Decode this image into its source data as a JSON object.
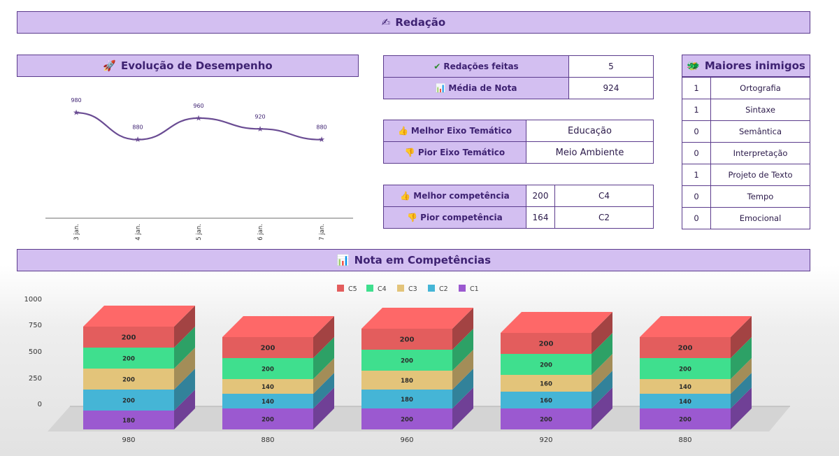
{
  "header": {
    "title": "Redação",
    "icon": "✍"
  },
  "evolucao": {
    "title": "Evolução de Desempenho",
    "icon": "🚀"
  },
  "stats1": {
    "rows": [
      {
        "icon": "✔",
        "label": "Redações feitas",
        "value": "5"
      },
      {
        "icon": "📊",
        "label": "Média de Nota",
        "value": "924"
      }
    ]
  },
  "stats2": {
    "rows": [
      {
        "icon": "👍",
        "label": "Melhor Eixo Temático",
        "value": "Educação"
      },
      {
        "icon": "👎",
        "label": "Pior Eixo Temático",
        "value": "Meio Ambiente"
      }
    ]
  },
  "stats3": {
    "rows": [
      {
        "icon": "👍",
        "label": "Melhor competência",
        "score": "200",
        "value": "C4"
      },
      {
        "icon": "👎",
        "label": "Pior competência",
        "score": "164",
        "value": "C2"
      }
    ]
  },
  "inimigos": {
    "title": "Maiores inimigos",
    "icon": "🐲",
    "rows": [
      {
        "count": "1",
        "name": "Ortografia"
      },
      {
        "count": "1",
        "name": "Sintaxe"
      },
      {
        "count": "0",
        "name": "Semântica"
      },
      {
        "count": "0",
        "name": "Interpretação"
      },
      {
        "count": "1",
        "name": "Projeto de Texto"
      },
      {
        "count": "0",
        "name": "Tempo"
      },
      {
        "count": "0",
        "name": "Emocional"
      }
    ]
  },
  "competencias": {
    "title": "Nota em Competências",
    "icon": "📊"
  },
  "chart_data": [
    {
      "type": "line",
      "title": "Evolução de Desempenho",
      "x": [
        "3 jan.",
        "4 jan.",
        "5 jan.",
        "6 jan.",
        "7 jan."
      ],
      "values": [
        980,
        880,
        960,
        920,
        880
      ],
      "data_labels": [
        "980",
        "880",
        "960",
        "920",
        "880"
      ],
      "color": "#6a4c93",
      "grid": false
    },
    {
      "type": "bar",
      "stacked": true,
      "title": "Nota em Competências",
      "categories": [
        "980",
        "880",
        "960",
        "920",
        "880"
      ],
      "series": [
        {
          "name": "C1",
          "color": "#9b59d0",
          "values": [
            180,
            200,
            200,
            200,
            200
          ]
        },
        {
          "name": "C2",
          "color": "#45b5d6",
          "values": [
            200,
            140,
            180,
            160,
            140
          ]
        },
        {
          "name": "C3",
          "color": "#e3c47a",
          "values": [
            200,
            140,
            180,
            160,
            140
          ]
        },
        {
          "name": "C4",
          "color": "#3fdf8e",
          "values": [
            200,
            200,
            200,
            200,
            200
          ]
        },
        {
          "name": "C5",
          "color": "#e35d5d",
          "values": [
            200,
            200,
            200,
            200,
            200
          ]
        }
      ],
      "legend_order": [
        "C5",
        "C4",
        "C3",
        "C2",
        "C1"
      ],
      "yticks": [
        "1000",
        "750",
        "500",
        "250",
        "0"
      ],
      "ylim": [
        0,
        1000
      ],
      "legend": "top-center",
      "grid": false
    }
  ]
}
